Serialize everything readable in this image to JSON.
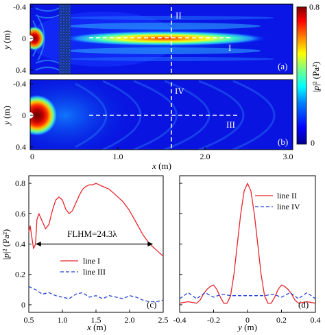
{
  "figure": {
    "panel_labels": [
      "(a)",
      "(b)",
      "(c)",
      "(d)"
    ],
    "colorbar": {
      "label_main": "|",
      "label_var": "p",
      "label_rest": "|² (Pa²)",
      "max_label": "0.8",
      "min_label": "0",
      "colormap": [
        "#00008f",
        "#0000ff",
        "#0080ff",
        "#00ffff",
        "#80ff80",
        "#ffff00",
        "#ff8000",
        "#ff0000",
        "#800000"
      ]
    },
    "map_axes": {
      "ylabel_var": "y",
      "ylabel_unit": " (m)",
      "xlabel_var": "x",
      "xlabel_unit": " (m)",
      "yticks": [
        "-0.4",
        "0",
        "0.4"
      ],
      "xticks": [
        "0",
        "1.0",
        "2.0",
        "3.0"
      ]
    },
    "map_line_labels": {
      "a_vertical": "II",
      "a_horizontal": "I",
      "b_vertical": "IV",
      "b_horizontal": "III"
    }
  },
  "chart_data": [
    {
      "panel": "(c)",
      "type": "line",
      "xlabel_var": "x",
      "xlabel_unit": " (m)",
      "ylabel_main": "|",
      "ylabel_var": "p",
      "ylabel_rest": "|² (Pa²)",
      "xlim": [
        0.5,
        2.5
      ],
      "ylim": [
        -0.05,
        0.85
      ],
      "xticks": [
        "0.5",
        "1.0",
        "1.5",
        "2.0",
        "2.5"
      ],
      "xtick_values": [
        0.5,
        1.0,
        1.5,
        2.0,
        2.5
      ],
      "yticks": [
        "0",
        "0.2",
        "0.4",
        "0.6",
        "0.8"
      ],
      "ytick_values": [
        0,
        0.2,
        0.4,
        0.6,
        0.8
      ],
      "annotation": {
        "text": "FLHM=24.3λ",
        "y": 0.4,
        "x_start": 0.6,
        "x_end": 2.35
      },
      "legend_position": "bottom-left",
      "series": [
        {
          "name": "line I",
          "color": "#e8242b",
          "dash": "solid",
          "x": [
            0.5,
            0.52,
            0.55,
            0.57,
            0.6,
            0.62,
            0.65,
            0.7,
            0.75,
            0.8,
            0.85,
            0.9,
            0.95,
            1.0,
            1.05,
            1.1,
            1.15,
            1.2,
            1.25,
            1.3,
            1.35,
            1.4,
            1.45,
            1.5,
            1.55,
            1.6,
            1.65,
            1.7,
            1.75,
            1.8,
            1.85,
            1.9,
            1.95,
            2.0,
            2.05,
            2.1,
            2.15,
            2.2,
            2.25,
            2.3,
            2.35,
            2.4,
            2.45,
            2.5
          ],
          "y": [
            0.48,
            0.52,
            0.43,
            0.37,
            0.4,
            0.56,
            0.6,
            0.55,
            0.5,
            0.53,
            0.62,
            0.69,
            0.71,
            0.69,
            0.63,
            0.6,
            0.62,
            0.67,
            0.72,
            0.76,
            0.78,
            0.79,
            0.79,
            0.8,
            0.79,
            0.78,
            0.77,
            0.76,
            0.74,
            0.72,
            0.7,
            0.68,
            0.65,
            0.62,
            0.58,
            0.54,
            0.5,
            0.46,
            0.43,
            0.4,
            0.38,
            0.36,
            0.34,
            0.32
          ]
        },
        {
          "name": "line III",
          "color": "#1f3fd6",
          "dash": "dashed",
          "x": [
            0.5,
            0.6,
            0.7,
            0.8,
            0.9,
            1.0,
            1.1,
            1.2,
            1.3,
            1.4,
            1.5,
            1.6,
            1.7,
            1.8,
            1.9,
            2.0,
            2.1,
            2.2,
            2.3,
            2.4,
            2.5
          ],
          "y": [
            0.12,
            0.1,
            0.07,
            0.08,
            0.06,
            0.05,
            0.04,
            0.07,
            0.08,
            0.05,
            0.06,
            0.04,
            0.06,
            0.05,
            0.04,
            0.06,
            0.05,
            0.03,
            0.02,
            0.02,
            0.03
          ]
        }
      ]
    },
    {
      "panel": "(d)",
      "type": "line",
      "xlabel_var": "y",
      "xlabel_unit": " (m)",
      "xlim": [
        -0.4,
        0.4
      ],
      "ylim": [
        -0.05,
        0.85
      ],
      "xticks": [
        "-0.4",
        "-0.2",
        "0",
        "0.2",
        "0.4"
      ],
      "xtick_values": [
        -0.4,
        -0.2,
        0,
        0.2,
        0.4
      ],
      "legend_position": "top-right",
      "series": [
        {
          "name": "line II",
          "color": "#e8242b",
          "dash": "solid",
          "x": [
            -0.4,
            -0.35,
            -0.3,
            -0.28,
            -0.26,
            -0.24,
            -0.22,
            -0.2,
            -0.18,
            -0.16,
            -0.14,
            -0.12,
            -0.1,
            -0.08,
            -0.06,
            -0.04,
            -0.02,
            0,
            0.02,
            0.04,
            0.06,
            0.08,
            0.1,
            0.12,
            0.14,
            0.16,
            0.18,
            0.2,
            0.22,
            0.24,
            0.26,
            0.28,
            0.3,
            0.35,
            0.4
          ],
          "y": [
            0.01,
            0.02,
            0.01,
            0.03,
            0.07,
            0.1,
            0.12,
            0.13,
            0.1,
            0.05,
            0.01,
            0.01,
            0.06,
            0.2,
            0.4,
            0.6,
            0.75,
            0.8,
            0.75,
            0.6,
            0.4,
            0.2,
            0.06,
            0.01,
            0.01,
            0.05,
            0.1,
            0.13,
            0.12,
            0.1,
            0.07,
            0.03,
            0.01,
            0.02,
            0.01
          ]
        },
        {
          "name": "line IV",
          "color": "#1f3fd6",
          "dash": "dashed",
          "x": [
            -0.4,
            -0.35,
            -0.3,
            -0.25,
            -0.2,
            -0.15,
            -0.1,
            -0.05,
            0,
            0.05,
            0.1,
            0.15,
            0.2,
            0.25,
            0.3,
            0.35,
            0.4
          ],
          "y": [
            0.04,
            0.08,
            0.04,
            0.08,
            0.05,
            0.07,
            0.06,
            0.06,
            0.06,
            0.06,
            0.06,
            0.07,
            0.05,
            0.08,
            0.04,
            0.08,
            0.04
          ]
        }
      ]
    }
  ]
}
